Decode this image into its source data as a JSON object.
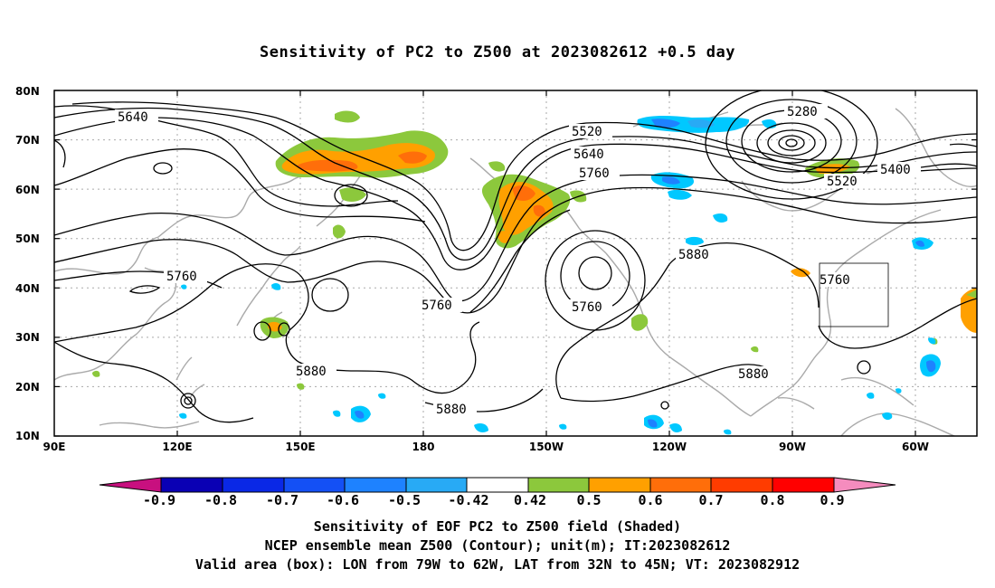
{
  "title": "Sensitivity of PC2 to Z500 at 2023082612 +0.5 day",
  "lat_labels": [
    "80N",
    "70N",
    "60N",
    "50N",
    "40N",
    "30N",
    "20N",
    "10N"
  ],
  "lon_labels": [
    "90E",
    "120E",
    "150E",
    "180",
    "150W",
    "120W",
    "90W",
    "60W"
  ],
  "contour_labels": {
    "c5640_a": "5640",
    "c5520": "5520",
    "c5640_b": "5640",
    "c5760_a": "5760",
    "c5280": "5280",
    "c5400": "5400",
    "c5520_b": "5520",
    "c5760_b": "5760",
    "c5880_a": "5880",
    "c5760_c": "5760",
    "c5760_d": "5760",
    "c5880_b": "5880",
    "c5880_c": "5880",
    "c5880_d": "5880",
    "c5760_e": "5760"
  },
  "colorbar": {
    "labels": [
      "-0.9",
      "-0.8",
      "-0.7",
      "-0.6",
      "-0.5",
      "-0.42",
      "0.42",
      "0.5",
      "0.6",
      "0.7",
      "0.8",
      "0.9"
    ],
    "colors": {
      "below_min": "#c8107f",
      "neg_09": "#0a00b4",
      "neg_08": "#0a28e6",
      "neg_07": "#1450f5",
      "neg_06": "#1e82ff",
      "neg_05": "#28aaf5",
      "neg_042": "#00c8ff",
      "neutral": "#ffffff",
      "pos_042": "#8cc83c",
      "pos_05": "#ffa000",
      "pos_06": "#ff6e0a",
      "pos_07": "#ff3c00",
      "pos_08": "#ff0000",
      "above_max": "#f58cbe"
    }
  },
  "captions": {
    "line1": "Sensitivity of EOF PC2 to Z500 field (Shaded)",
    "line2": "NCEP ensemble mean Z500 (Contour); unit(m); IT:2023082612",
    "line3": "Valid area (box): LON from 79W to 62W, LAT from 32N to 45N; VT: 2023082912"
  },
  "valid_box": {
    "lon_west": "79W",
    "lon_east": "62W",
    "lat_south": "32N",
    "lat_north": "45N"
  }
}
